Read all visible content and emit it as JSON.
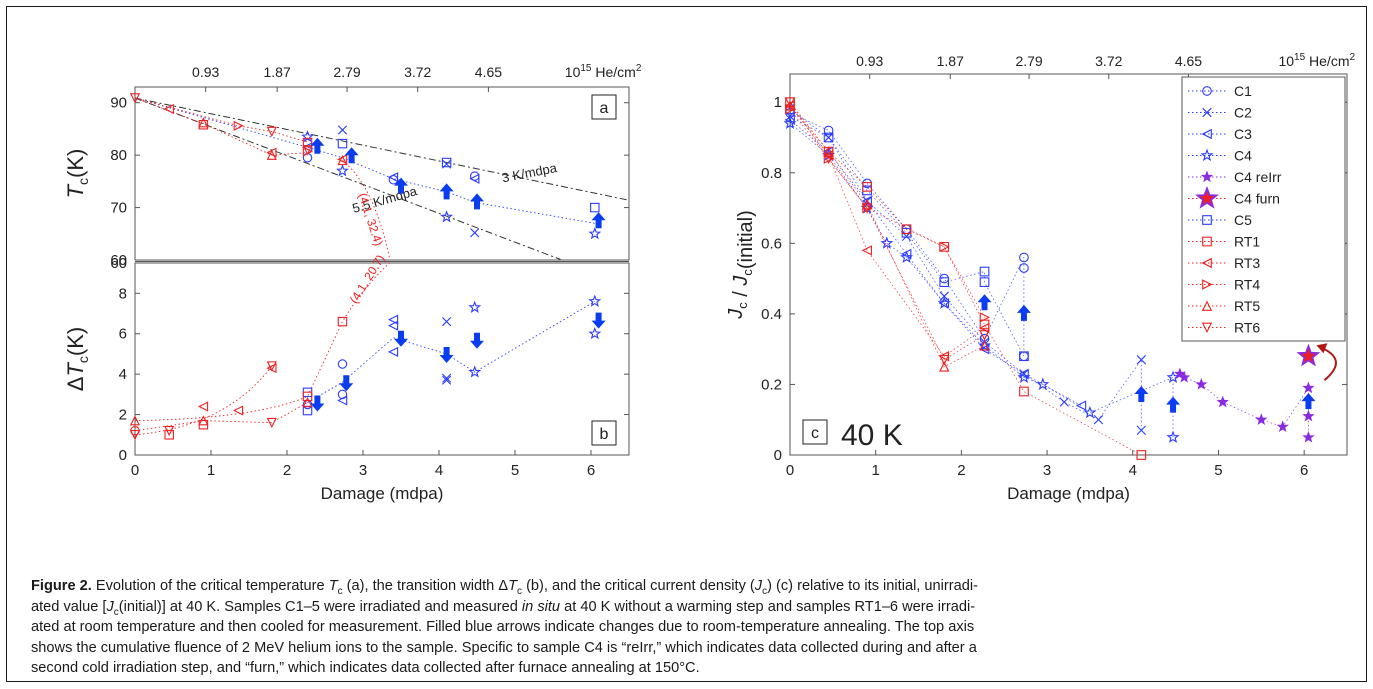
{
  "figure": {
    "top_axis_unit_prefix": "10",
    "top_axis_unit_exp": "15",
    "top_axis_unit_suffix": " He/cm",
    "top_axis_unit_sq": "2",
    "top_axis_ticks": [
      "0.93",
      "1.87",
      "2.79",
      "3.72",
      "4.65"
    ]
  },
  "caption": {
    "label": "Figure 2.",
    "segments": [
      {
        "t": "  Evolution of the critical temperature "
      },
      {
        "t": "T",
        "i": true
      },
      {
        "t": "c",
        "sub": true
      },
      {
        "t": " (a), the transition width Δ"
      },
      {
        "t": "T",
        "i": true
      },
      {
        "t": "c",
        "sub": true
      },
      {
        "t": " (b), and the critical current density ("
      },
      {
        "t": "J",
        "i": true
      },
      {
        "t": "c",
        "sub": true
      },
      {
        "t": ") (c) relative to its initial, unirradi-"
      },
      {
        "br": true
      },
      {
        "t": "ated value ["
      },
      {
        "t": "J",
        "i": true
      },
      {
        "t": "c",
        "sub": true
      },
      {
        "t": "(initial)] at 40 K. Samples C1–5 were irradiated and measured "
      },
      {
        "t": "in situ",
        "i": true
      },
      {
        "t": " at 40 K without a warming step and samples RT1–6 were irradi-"
      },
      {
        "br": true
      },
      {
        "t": "ated at room temperature and then cooled for measurement. Filled blue arrows indicate changes due to room-temperature annealing. The top axis"
      },
      {
        "br": true
      },
      {
        "t": "shows the cumulative fluence of 2 MeV helium ions to the sample. Specific to sample C4 is “reIrr,” which indicates data collected during and after a"
      },
      {
        "br": true
      },
      {
        "t": "second cold irradiation step, and “furn,” which indicates data collected after furnace annealing at 150°C."
      }
    ]
  },
  "chart_data": [
    {
      "id": "a",
      "type": "scatter",
      "panel_label": "a",
      "ylabel": "T_c (K)",
      "xlabel": "",
      "xlim": [
        0,
        6.5
      ],
      "ylim": [
        60,
        93
      ],
      "yticks": [
        60,
        70,
        80,
        90
      ],
      "top_axis": {
        "label": "10^15 He/cm^2",
        "ticks": [
          0.93,
          1.87,
          2.79,
          3.72,
          4.65
        ]
      },
      "annotations": [
        "3 K/mdpa",
        "5.5 K/mdpa",
        "(4.1, 32.4)"
      ],
      "guide_lines": [
        {
          "name": "3 K/mdpa",
          "x": [
            0,
            6.5
          ],
          "y": [
            90.9,
            71.4
          ]
        },
        {
          "name": "5.5 K/mdpa",
          "x": [
            0,
            5.6
          ],
          "y": [
            90.9,
            60.1
          ]
        }
      ],
      "series": [
        {
          "group": "C",
          "color": "#2a3cff",
          "points": [
            [
              2.27,
              83.5
            ],
            [
              2.27,
              79.5
            ],
            [
              2.27,
              81.5
            ],
            [
              2.73,
              84.8
            ],
            [
              2.73,
              82.2
            ],
            [
              2.73,
              77.0
            ],
            [
              3.4,
              75.3
            ],
            [
              3.4,
              75.8
            ],
            [
              4.1,
              78.3
            ],
            [
              4.1,
              78.6
            ],
            [
              4.1,
              68.2
            ],
            [
              4.47,
              76.0
            ],
            [
              4.47,
              75.5
            ],
            [
              4.47,
              65.2
            ],
            [
              6.05,
              70.0
            ],
            [
              6.05,
              65.0
            ]
          ]
        },
        {
          "group": "RT",
          "color": "#ee2020",
          "points": [
            [
              0,
              90.9
            ],
            [
              0.45,
              88.8
            ],
            [
              0.9,
              86.2
            ],
            [
              0.9,
              85.8
            ],
            [
              1.36,
              85.6
            ],
            [
              1.8,
              84.5
            ],
            [
              1.8,
              80.5
            ],
            [
              1.8,
              80.0
            ],
            [
              2.27,
              82.4
            ],
            [
              2.27,
              80.7
            ],
            [
              2.27,
              81.0
            ],
            [
              2.73,
              79.2
            ],
            [
              2.73,
              79.0
            ]
          ]
        },
        {
          "group": "anneal arrows",
          "color": "#0a3cf0",
          "points": [
            [
              2.4,
              81.6
            ],
            [
              2.85,
              79.8
            ],
            [
              3.5,
              74.0
            ],
            [
              4.1,
              72.9
            ],
            [
              4.5,
              71.0
            ],
            [
              6.1,
              67.4
            ]
          ]
        }
      ]
    },
    {
      "id": "b",
      "type": "scatter",
      "panel_label": "b",
      "ylabel": "ΔT_c (K)",
      "xlabel": "Damage (mdpa)",
      "xlim": [
        0,
        6.5
      ],
      "ylim": [
        0,
        9.5
      ],
      "xticks": [
        0,
        1,
        2,
        3,
        4,
        5,
        6
      ],
      "yticks": [
        0,
        2,
        4,
        6,
        8
      ],
      "annotations": [
        "(4.1, 20.7)"
      ],
      "series": [
        {
          "group": "C",
          "color": "#2a3cff",
          "points": [
            [
              2.27,
              3.1
            ],
            [
              2.27,
              2.2
            ],
            [
              2.27,
              2.5
            ],
            [
              2.73,
              4.5
            ],
            [
              2.73,
              3.0
            ],
            [
              2.73,
              2.7
            ],
            [
              3.4,
              6.7
            ],
            [
              3.4,
              6.4
            ],
            [
              3.4,
              5.1
            ],
            [
              4.1,
              6.6
            ],
            [
              4.1,
              3.8
            ],
            [
              4.1,
              3.7
            ],
            [
              4.47,
              7.3
            ],
            [
              4.47,
              4.1
            ],
            [
              6.05,
              7.6
            ],
            [
              6.05,
              6.0
            ]
          ]
        },
        {
          "group": "RT",
          "color": "#ee2020",
          "points": [
            [
              0,
              1.7
            ],
            [
              0,
              1.0
            ],
            [
              0,
              1.2
            ],
            [
              0.45,
              1.2
            ],
            [
              0.45,
              1.0
            ],
            [
              0.9,
              2.4
            ],
            [
              0.9,
              1.7
            ],
            [
              0.9,
              1.5
            ],
            [
              1.36,
              2.2
            ],
            [
              1.8,
              4.4
            ],
            [
              1.8,
              4.3
            ],
            [
              1.8,
              1.6
            ],
            [
              2.27,
              2.9
            ],
            [
              2.27,
              2.6
            ],
            [
              2.73,
              6.6
            ]
          ]
        },
        {
          "group": "anneal arrows",
          "color": "#0a3cf0",
          "points": [
            [
              2.4,
              2.6
            ],
            [
              2.78,
              3.6
            ],
            [
              3.5,
              5.8
            ],
            [
              4.1,
              5.0
            ],
            [
              4.5,
              5.7
            ],
            [
              6.1,
              6.7
            ]
          ]
        }
      ]
    },
    {
      "id": "c",
      "type": "scatter",
      "panel_label": "c",
      "panel_note": "40 K",
      "ylabel": "J_c / J_c(initial)",
      "xlabel": "Damage (mdpa)",
      "xlim": [
        0,
        6.5
      ],
      "ylim": [
        0,
        1.08
      ],
      "xticks": [
        0,
        1,
        2,
        3,
        4,
        5,
        6
      ],
      "yticks": [
        0,
        0.2,
        0.4,
        0.6,
        0.8,
        1
      ],
      "ytick_labels": [
        "0",
        "0.2",
        "0.4",
        "0.6",
        "0.8",
        "1"
      ],
      "top_axis": {
        "label": "10^15 He/cm^2",
        "ticks": [
          0.93,
          1.87,
          2.79,
          3.72,
          4.65
        ]
      },
      "legend_position": "top-right",
      "series": [
        {
          "name": "C1",
          "color": "#2a3cff",
          "marker": "circle",
          "points": [
            [
              0,
              0.97
            ],
            [
              0.45,
              0.92
            ],
            [
              0.9,
              0.77
            ],
            [
              1.36,
              0.64
            ],
            [
              1.8,
              0.5
            ],
            [
              2.27,
              0.33
            ],
            [
              2.73,
              0.56
            ],
            [
              2.73,
              0.53
            ],
            [
              2.73,
              0.28
            ]
          ]
        },
        {
          "name": "C2",
          "color": "#2a3cff",
          "marker": "x",
          "points": [
            [
              0,
              0.96
            ],
            [
              0.45,
              0.9
            ],
            [
              0.9,
              0.72
            ],
            [
              1.36,
              0.62
            ],
            [
              1.8,
              0.45
            ],
            [
              2.27,
              0.32
            ],
            [
              2.73,
              0.23
            ],
            [
              3.2,
              0.15
            ],
            [
              3.6,
              0.1
            ],
            [
              4.1,
              0.27
            ],
            [
              4.1,
              0.07
            ]
          ]
        },
        {
          "name": "C3",
          "color": "#2a3cff",
          "marker": "triangle-left",
          "points": [
            [
              0,
              0.95
            ],
            [
              0.45,
              0.86
            ],
            [
              0.9,
              0.72
            ],
            [
              1.36,
              0.57
            ],
            [
              1.8,
              0.43
            ],
            [
              2.27,
              0.3
            ],
            [
              2.73,
              0.23
            ],
            [
              3.4,
              0.14
            ]
          ]
        },
        {
          "name": "C4",
          "color": "#2a3cff",
          "marker": "star",
          "points": [
            [
              0,
              0.94
            ],
            [
              0.45,
              0.85
            ],
            [
              0.9,
              0.7
            ],
            [
              1.13,
              0.6
            ],
            [
              1.36,
              0.56
            ],
            [
              1.8,
              0.43
            ],
            [
              2.27,
              0.31
            ],
            [
              2.73,
              0.22
            ],
            [
              2.95,
              0.2
            ],
            [
              3.5,
              0.12
            ],
            [
              4.47,
              0.22
            ],
            [
              4.47,
              0.05
            ]
          ]
        },
        {
          "name": "C4 reIrr",
          "color": "#8a2be2",
          "marker": "star-filled",
          "points": [
            [
              4.55,
              0.23
            ],
            [
              4.6,
              0.22
            ],
            [
              4.8,
              0.2
            ],
            [
              5.05,
              0.15
            ],
            [
              5.5,
              0.1
            ],
            [
              5.75,
              0.08
            ],
            [
              6.05,
              0.19
            ],
            [
              6.05,
              0.11
            ],
            [
              6.05,
              0.05
            ]
          ]
        },
        {
          "name": "C4 furn",
          "color": "#ee2020",
          "marker": "star-large",
          "points": [
            [
              6.05,
              0.28
            ]
          ]
        },
        {
          "name": "C5",
          "color": "#2a3cff",
          "marker": "square",
          "points": [
            [
              0,
              0.98
            ],
            [
              0.45,
              0.9
            ],
            [
              0.9,
              0.75
            ],
            [
              1.36,
              0.63
            ],
            [
              1.8,
              0.49
            ],
            [
              2.27,
              0.52
            ],
            [
              2.27,
              0.49
            ],
            [
              2.73,
              0.28
            ]
          ]
        },
        {
          "name": "RT1",
          "color": "#ee2020",
          "marker": "square",
          "points": [
            [
              0,
              1.0
            ],
            [
              0.45,
              0.86
            ],
            [
              0.9,
              0.76
            ],
            [
              1.36,
              0.64
            ],
            [
              1.8,
              0.59
            ],
            [
              2.27,
              0.37
            ],
            [
              2.73,
              0.18
            ],
            [
              4.1,
              0.0
            ]
          ]
        },
        {
          "name": "RT3",
          "color": "#ee2020",
          "marker": "triangle-left",
          "points": [
            [
              0,
              0.99
            ],
            [
              0.45,
              0.85
            ],
            [
              0.9,
              0.58
            ],
            [
              1.8,
              0.28
            ],
            [
              2.27,
              0.36
            ]
          ]
        },
        {
          "name": "RT4",
          "color": "#ee2020",
          "marker": "triangle-right",
          "points": [
            [
              0,
              0.98
            ],
            [
              0.45,
              0.84
            ],
            [
              0.9,
              0.7
            ],
            [
              1.8,
              0.59
            ],
            [
              2.27,
              0.39
            ]
          ]
        },
        {
          "name": "RT5",
          "color": "#ee2020",
          "marker": "triangle-up",
          "points": [
            [
              0,
              0.99
            ],
            [
              0.45,
              0.86
            ],
            [
              0.9,
              0.71
            ],
            [
              1.8,
              0.25
            ],
            [
              2.27,
              0.31
            ]
          ]
        },
        {
          "name": "RT6",
          "color": "#ee2020",
          "marker": "triangle-down",
          "points": [
            [
              0,
              1.0
            ],
            [
              0.45,
              0.84
            ],
            [
              0.9,
              0.7
            ],
            [
              1.8,
              0.27
            ],
            [
              2.27,
              0.34
            ]
          ]
        },
        {
          "name": "",
          "group": "anneal arrows",
          "color": "#0a3cf0",
          "points": [
            [
              2.27,
              0.43
            ],
            [
              2.73,
              0.4
            ],
            [
              4.1,
              0.17
            ],
            [
              4.47,
              0.14
            ],
            [
              6.05,
              0.15
            ]
          ]
        }
      ]
    }
  ]
}
